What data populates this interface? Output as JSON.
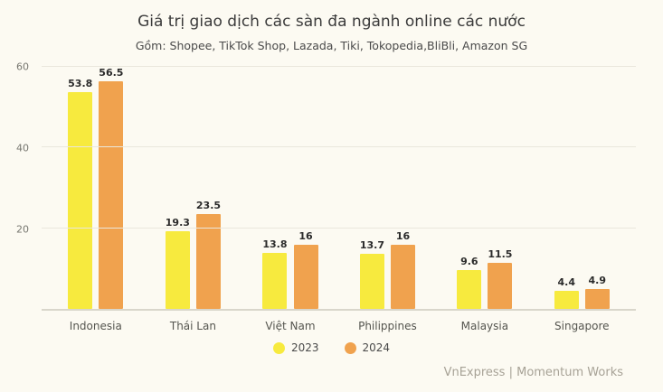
{
  "chart_data": {
    "type": "bar",
    "title": "Giá trị giao dịch các sàn đa ngành online các nước",
    "subtitle": "Gồm: Shopee, TikTok Shop, Lazada, Tiki, Tokopedia,BliBli, Amazon SG",
    "categories": [
      "Indonesia",
      "Thái Lan",
      "Việt Nam",
      "Philippines",
      "Malaysia",
      "Singapore"
    ],
    "series": [
      {
        "name": "2023",
        "color": "#f7ea3e",
        "values": [
          53.8,
          19.3,
          13.8,
          13.7,
          9.6,
          4.4
        ]
      },
      {
        "name": "2024",
        "color": "#f0a24e",
        "values": [
          56.5,
          23.5,
          16,
          16,
          11.5,
          4.9
        ]
      }
    ],
    "ylim": [
      0,
      60
    ],
    "yticks": [
      20,
      40,
      60
    ],
    "grid": true,
    "legend_position": "bottom"
  },
  "footer": {
    "credit": "VnExpress | Momentum Works"
  }
}
